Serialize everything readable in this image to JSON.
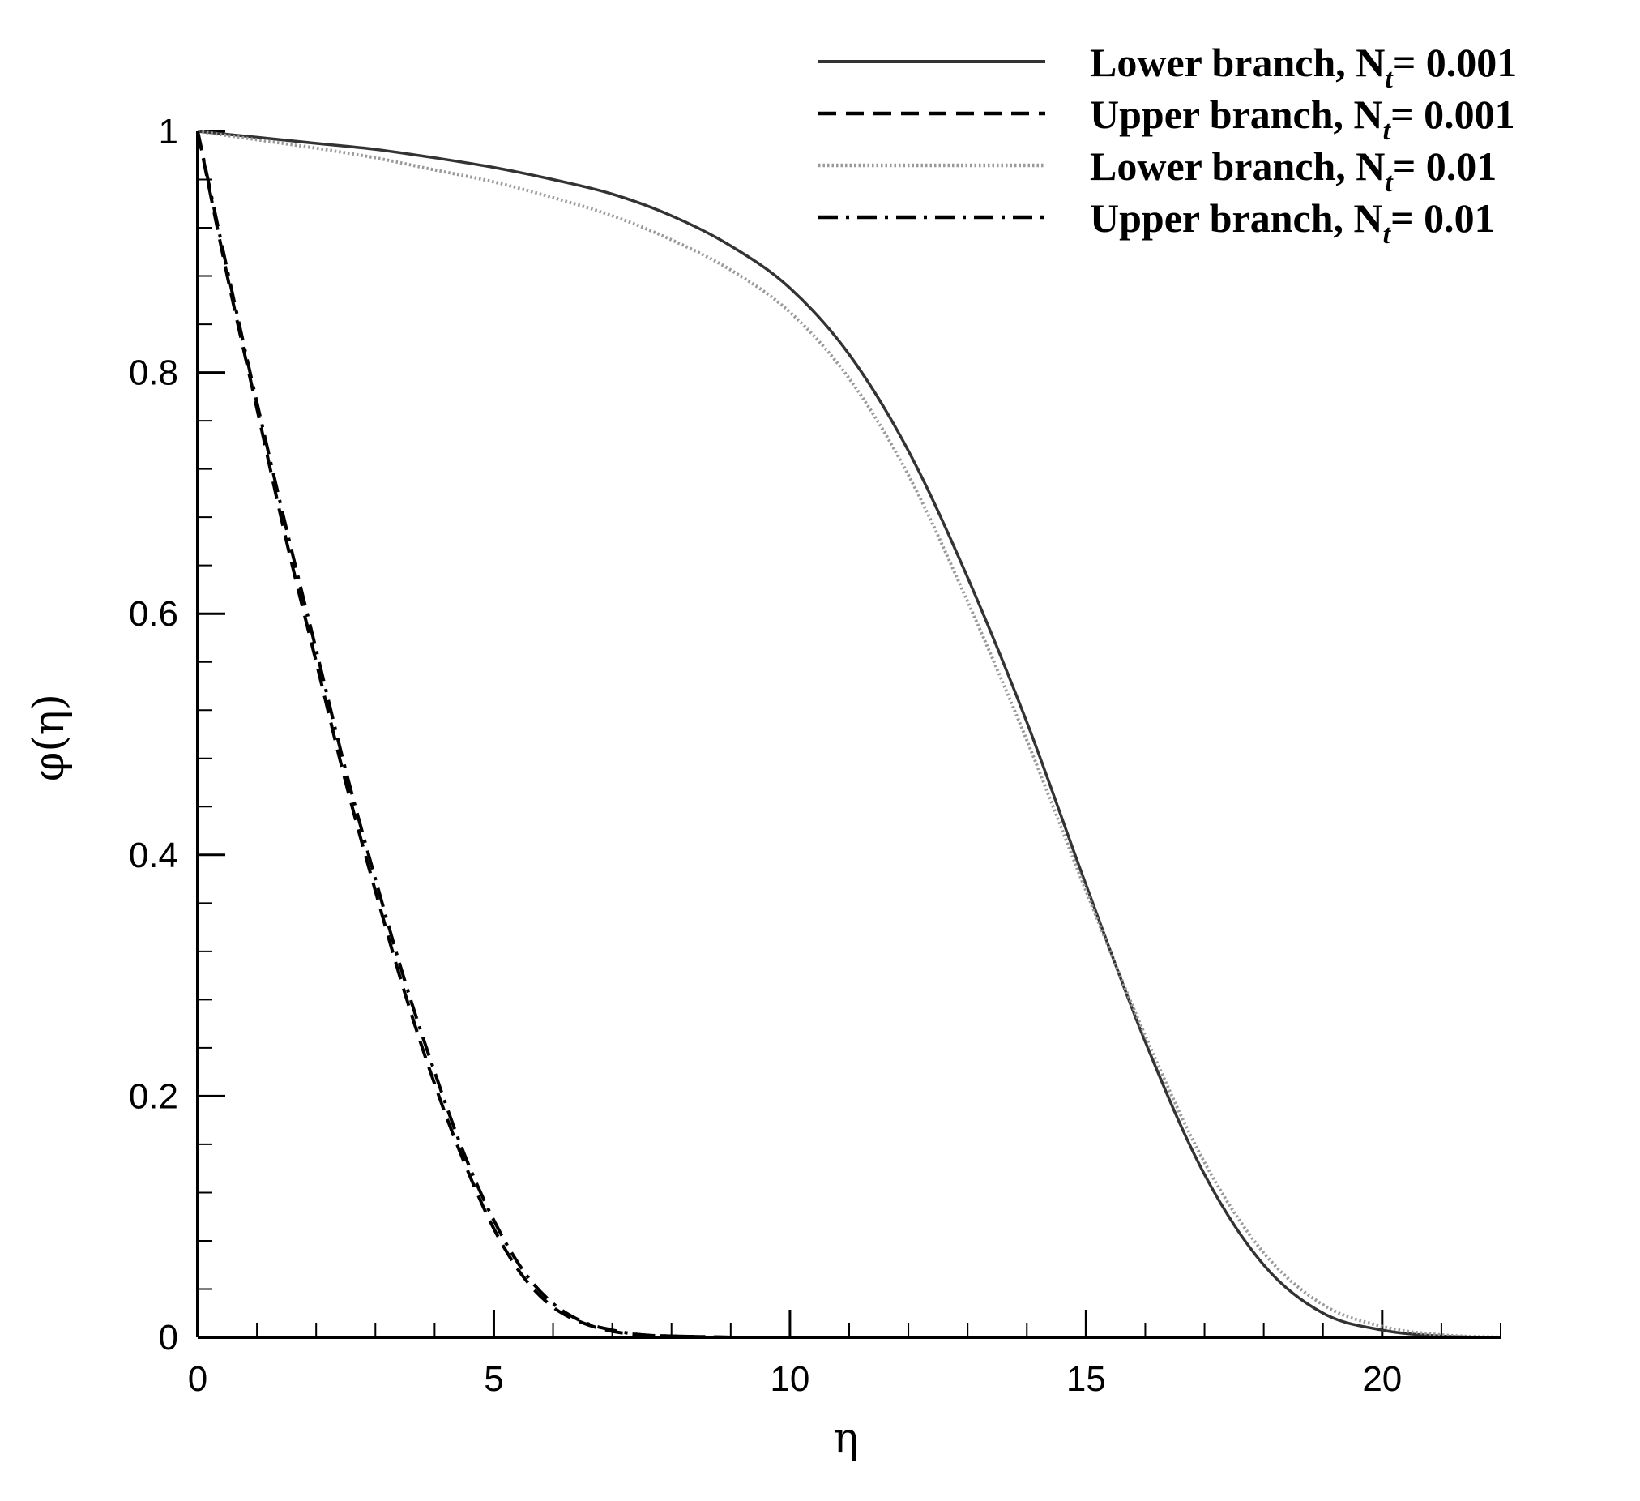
{
  "chart_data": {
    "type": "line",
    "title": "",
    "xlabel": "η",
    "ylabel": "φ(η)",
    "xlim": [
      0,
      22
    ],
    "ylim": [
      0,
      1
    ],
    "x_ticks": [
      0,
      5,
      10,
      15,
      20
    ],
    "x_tick_labels": [
      "0",
      "5",
      "10",
      "15",
      "20"
    ],
    "y_ticks": [
      0,
      0.2,
      0.4,
      0.6,
      0.8,
      1
    ],
    "y_tick_labels": [
      "0",
      "0.2",
      "0.4",
      "0.6",
      "0.8",
      "1"
    ],
    "grid": false,
    "legend_position": "top-right",
    "series": [
      {
        "name": "Lower branch, Nt= 0.001",
        "label_main": "Lower branch,  N",
        "label_sub": "t",
        "label_value": "= 0.001",
        "color": "#333333",
        "style": "solid",
        "x": [
          0,
          1,
          2,
          3,
          4,
          5,
          6,
          7,
          8,
          9,
          10,
          11,
          12,
          13,
          14,
          15,
          16,
          17,
          18,
          19,
          20,
          21,
          22
        ],
        "y": [
          1.0,
          0.995,
          0.99,
          0.985,
          0.978,
          0.97,
          0.96,
          0.948,
          0.93,
          0.905,
          0.87,
          0.815,
          0.735,
          0.63,
          0.51,
          0.375,
          0.245,
          0.135,
          0.06,
          0.02,
          0.006,
          0.001,
          0.0
        ]
      },
      {
        "name": "Upper branch, Nt= 0.001",
        "label_main": "Upper branch,  N",
        "label_sub": "t",
        "label_value": "= 0.001",
        "color": "#000000",
        "style": "dashed",
        "x": [
          0,
          0.5,
          1,
          1.5,
          2,
          2.5,
          3,
          3.5,
          4,
          4.5,
          5,
          5.5,
          6,
          6.5,
          7,
          7.5,
          8,
          9
        ],
        "y": [
          1.0,
          0.88,
          0.77,
          0.66,
          0.56,
          0.46,
          0.37,
          0.285,
          0.21,
          0.145,
          0.09,
          0.05,
          0.025,
          0.012,
          0.005,
          0.002,
          0.001,
          0.0
        ]
      },
      {
        "name": "Lower branch, Nt= 0.01",
        "label_main": "Lower branch,  N",
        "label_sub": "t",
        "label_value": "= 0.01",
        "color": "#9a9a9a",
        "style": "dotted",
        "x": [
          0,
          1,
          2,
          3,
          4,
          5,
          6,
          7,
          8,
          9,
          10,
          11,
          12,
          13,
          14,
          15,
          16,
          17,
          18,
          19,
          20,
          21,
          22
        ],
        "y": [
          1.0,
          0.993,
          0.986,
          0.978,
          0.968,
          0.958,
          0.945,
          0.93,
          0.91,
          0.885,
          0.85,
          0.795,
          0.715,
          0.61,
          0.495,
          0.37,
          0.25,
          0.145,
          0.07,
          0.027,
          0.009,
          0.002,
          0.0
        ]
      },
      {
        "name": "Upper branch, Nt= 0.01",
        "label_main": "Upper branch,  N",
        "label_sub": "t",
        "label_value": "= 0.01",
        "color": "#000000",
        "style": "dashdot",
        "x": [
          0,
          0.5,
          1,
          1.5,
          2,
          2.5,
          3,
          3.5,
          4,
          4.5,
          5,
          5.5,
          6,
          6.5,
          7,
          7.5,
          8,
          9
        ],
        "y": [
          1.0,
          0.885,
          0.775,
          0.67,
          0.57,
          0.47,
          0.38,
          0.295,
          0.22,
          0.152,
          0.097,
          0.055,
          0.028,
          0.013,
          0.006,
          0.002,
          0.001,
          0.0
        ]
      }
    ]
  }
}
